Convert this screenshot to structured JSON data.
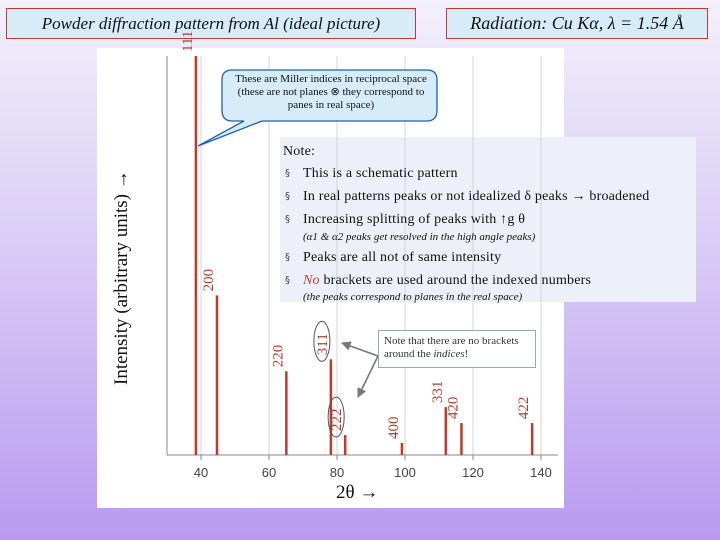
{
  "header": {
    "title_left": "Powder diffraction pattern from Al (ideal picture)",
    "title_right": "Radiation: Cu Kα, λ = 1.54 Å"
  },
  "chart_data": {
    "type": "bar",
    "xlabel": "2θ →",
    "ylabel": "Intensity (arbitrary units) →",
    "xlim": [
      30,
      145
    ],
    "ylim": [
      0,
      100
    ],
    "xticks": [
      40,
      60,
      80,
      100,
      120,
      140
    ],
    "xtick_labels": [
      "40",
      "60",
      "80",
      "100",
      "120",
      "140"
    ],
    "peak_color": "#c0392b",
    "peaks": [
      {
        "label": "111",
        "x": 38.5,
        "y": 100
      },
      {
        "label": "200",
        "x": 44.7,
        "y": 40
      },
      {
        "label": "220",
        "x": 65.1,
        "y": 21
      },
      {
        "label": "311",
        "x": 78.2,
        "y": 24
      },
      {
        "label": "222",
        "x": 82.4,
        "y": 5
      },
      {
        "label": "400",
        "x": 99.1,
        "y": 3
      },
      {
        "label": "331",
        "x": 112.0,
        "y": 12
      },
      {
        "label": "420",
        "x": 116.6,
        "y": 8
      },
      {
        "label": "422",
        "x": 137.4,
        "y": 8
      }
    ]
  },
  "callout": {
    "text": "These are Miller indices in reciprocal space (these are not planes ⊗ they correspond to panes in real space)"
  },
  "notes": {
    "heading": "Note:",
    "item1": "This is a schematic pattern",
    "item2": "In real patterns peaks or not idealized δ peaks → broadened",
    "item3": "Increasing splitting of peaks with ↑g θ",
    "item3_sub": "(α1 & α2 peaks get resolved in the high angle peaks)",
    "item4": "Peaks are all not of same intensity",
    "item5_prefix": "No",
    "item5_rest": " brackets are used around the indexed numbers",
    "item5_sub": "(the peaks correspond to planes in the real space)",
    "bullet_char": "§"
  },
  "note2": {
    "line1": "Note that there are no brackets",
    "line2_prefix": "around the ",
    "line2_italic": "indices",
    "line2_suffix": "!"
  }
}
